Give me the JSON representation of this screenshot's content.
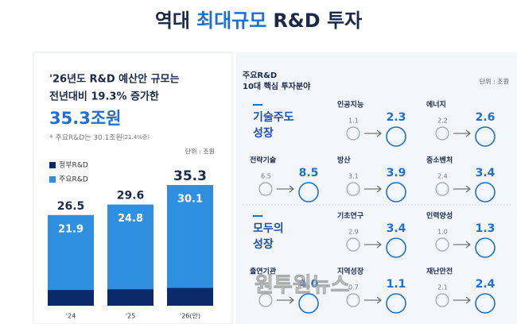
{
  "title": [
    "역대",
    "최대규모",
    "R&D 투자"
  ],
  "left": {
    "lines": [
      "'26년도 R&D 예산안 규모는",
      "전년대비 19.3% 증가한"
    ],
    "headline": "35.3조원",
    "note": "* 주요R&D는 30.1조원",
    "note_small": "(21.4%증)",
    "unit": "단위 : 조원"
  },
  "chart_data": {
    "type": "bar",
    "categories": [
      "'24",
      "'25",
      "'26(안)"
    ],
    "series": [
      {
        "name": "정부R&D",
        "color": "#0b2a6b",
        "values": [
          26.5,
          29.6,
          35.3
        ]
      },
      {
        "name": "주요R&D",
        "color": "#2f8fe0",
        "values": [
          21.9,
          24.8,
          30.1
        ]
      }
    ]
  },
  "right": {
    "header": [
      "주요R&D",
      "10대 핵심 투자분야"
    ],
    "unit": "단위 : 조원",
    "groups": [
      {
        "lines": [
          "기술주도",
          "성장"
        ],
        "items": [
          {
            "label": "인공지능",
            "before": 1.1,
            "after": 2.3
          },
          {
            "label": "에너지",
            "before": 2.2,
            "after": 2.6
          },
          {
            "label": "전략기술",
            "before": 6.5,
            "after": 8.5
          },
          {
            "label": "방산",
            "before": 3.1,
            "after": 3.9
          },
          {
            "label": "중소벤처",
            "before": 2.4,
            "after": 3.4
          }
        ]
      },
      {
        "lines": [
          "모두의",
          "성장"
        ],
        "items": [
          {
            "label": "기초연구",
            "before": 2.9,
            "after": 3.4
          },
          {
            "label": "인력양성",
            "before": 1,
            "before_label": "1.0",
            "after": 1.3
          },
          {
            "label": "출연기관",
            "before": null,
            "after": 4,
            "after_label": "4.0"
          },
          {
            "label": "지역성장",
            "before": 0.7,
            "after": 1.1
          },
          {
            "label": "재난안전",
            "before": 2.1,
            "after": 2.4
          }
        ]
      }
    ]
  },
  "watermark": "원투원뉴스"
}
